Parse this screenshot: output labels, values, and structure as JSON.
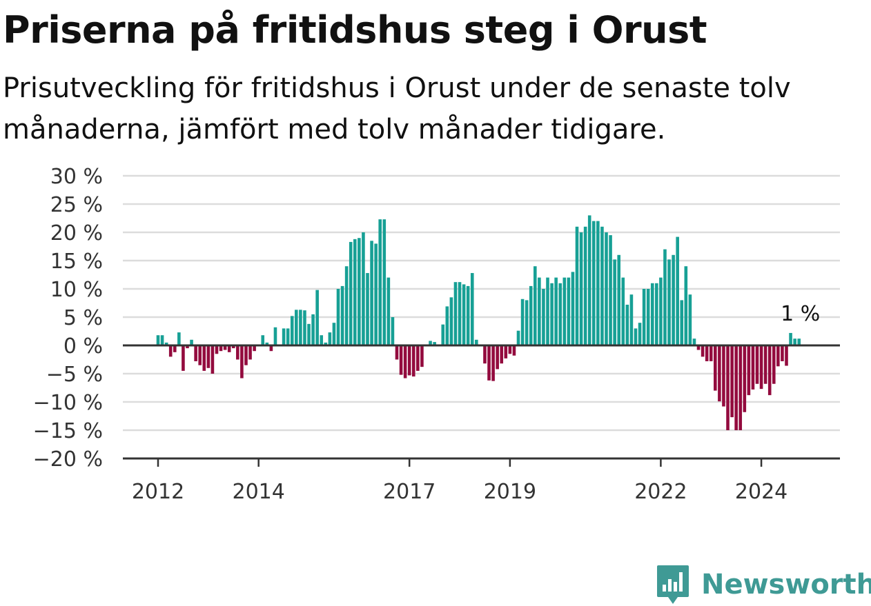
{
  "header": {
    "title": "Priserna på fritidshus steg i Orust",
    "subtitle": "Prisutveckling för fritidshus i Orust under de senaste tolv månaderna, jämfört med tolv månader tidigare."
  },
  "brand": {
    "name": "Newsworthy",
    "icon": "newsworthy-logo-icon",
    "color": "#3f9a95"
  },
  "chart_data": {
    "type": "bar",
    "title": "Priserna på fritidshus steg i Orust",
    "subtitle": "Prisutveckling för fritidshus i Orust under de senaste tolv månaderna, jämfört med tolv månader tidigare.",
    "xlabel": "",
    "ylabel": "",
    "ylim": [
      -20,
      30
    ],
    "y_ticks": [
      30,
      25,
      20,
      15,
      10,
      5,
      0,
      -5,
      -10,
      -15,
      -20
    ],
    "y_tick_labels": [
      "30 %",
      "25 %",
      "20 %",
      "15 %",
      "10 %",
      "5 %",
      "0 %",
      "−5 %",
      "−10 %",
      "−15 %",
      "−20 %"
    ],
    "x_start": "2012-01",
    "x_ticks": [
      "2012",
      "2014",
      "2017",
      "2019",
      "2022",
      "2024"
    ],
    "grid": true,
    "positive_color": "#17a095",
    "negative_color": "#930b3e",
    "annotation": "1 %",
    "values": [
      1.8,
      1.8,
      0.5,
      -2,
      -1.2,
      2.3,
      -4.5,
      -0.5,
      1,
      -2.8,
      -3.5,
      -4.5,
      -4,
      -5,
      -1.5,
      -1,
      -0.8,
      -1.2,
      -0.5,
      -2.5,
      -5.8,
      -3.5,
      -2.5,
      -1,
      0,
      1.8,
      0.5,
      -1,
      3.2,
      0,
      3,
      3,
      5.2,
      6.3,
      6.3,
      6.2,
      3.8,
      5.5,
      9.8,
      1.8,
      0.5,
      2.3,
      4,
      10,
      10.5,
      14,
      18.3,
      18.8,
      19,
      20,
      12.8,
      18.5,
      18,
      22.3,
      22.3,
      12,
      5,
      -2.5,
      -5.2,
      -5.8,
      -5.3,
      -5.5,
      -4.5,
      -3.8,
      0,
      0.8,
      0.6,
      0,
      3.7,
      6.9,
      8.5,
      11.2,
      11.2,
      10.8,
      10.5,
      12.8,
      1,
      0,
      -3.2,
      -6.2,
      -6.3,
      -4.2,
      -3.2,
      -2.3,
      -1.5,
      -1.8,
      2.6,
      8.2,
      8,
      10.5,
      14,
      12,
      10,
      12,
      11,
      12,
      11,
      12,
      12,
      13,
      21,
      20,
      21,
      23,
      22,
      22,
      21,
      20,
      19.5,
      15.2,
      16,
      12,
      7.2,
      9,
      3,
      4,
      10,
      10,
      11,
      11,
      12,
      17,
      15.2,
      16,
      19.2,
      8,
      14,
      9,
      1.2,
      -0.8,
      -2,
      -2.8,
      -2.8,
      -8,
      -9.9,
      -10.8,
      -15,
      -12.7,
      -15,
      -15,
      -11.8,
      -8.8,
      -7.8,
      -6.8,
      -7.7,
      -6.8,
      -8.8,
      -6.8,
      -3.7,
      -2.8,
      -3.6,
      2.2,
      1.2,
      1.2
    ]
  }
}
